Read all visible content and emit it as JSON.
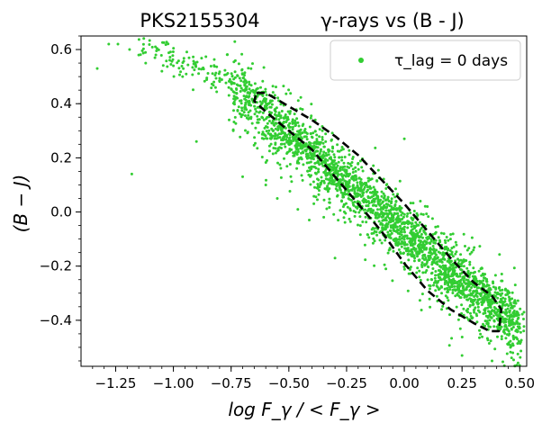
{
  "chart_data": {
    "type": "scatter",
    "title_left": "PKS2155304",
    "title_right": "γ-rays vs (B - J)",
    "xlabel": "log F_γ / < F_γ >",
    "ylabel": "(B − J)",
    "xlim": [
      -1.4,
      0.53
    ],
    "ylim": [
      -0.57,
      0.65
    ],
    "x_ticks": [
      -1.25,
      -1.0,
      -0.75,
      -0.5,
      -0.25,
      0.0,
      0.25,
      0.5
    ],
    "x_tick_labels": [
      "−1.25",
      "−1.00",
      "−0.75",
      "−0.50",
      "−0.25",
      "0.00",
      "0.25",
      "0.50"
    ],
    "y_ticks": [
      -0.4,
      -0.2,
      0.0,
      0.2,
      0.4,
      0.6
    ],
    "y_tick_labels": [
      "−0.4",
      "−0.2",
      "0.0",
      "0.2",
      "0.4",
      "0.6"
    ],
    "grid": false,
    "legend_position": "top-right",
    "series": [
      {
        "name": "τ_lag = 0  days",
        "color": "#32cd32",
        "marker": "circle",
        "trend": {
          "x_start": -0.75,
          "x_end": 0.5,
          "y_start": 0.47,
          "y_end": -0.43,
          "scatter_sd": 0.055,
          "n_points": 2600
        },
        "outliers": [
          {
            "x": -1.28,
            "y": 0.62
          },
          {
            "x": -1.24,
            "y": 0.62
          },
          {
            "x": -1.19,
            "y": 0.6
          },
          {
            "x": -1.33,
            "y": 0.53
          },
          {
            "x": -1.15,
            "y": 0.58
          },
          {
            "x": -1.12,
            "y": 0.55
          },
          {
            "x": -1.08,
            "y": 0.57
          },
          {
            "x": -1.05,
            "y": 0.52
          },
          {
            "x": -1.18,
            "y": 0.14
          },
          {
            "x": -0.9,
            "y": 0.26
          },
          {
            "x": -0.96,
            "y": 0.5
          },
          {
            "x": -1.0,
            "y": 0.54
          },
          {
            "x": 0.0,
            "y": 0.27
          },
          {
            "x": -0.25,
            "y": 0.15
          },
          {
            "x": -0.2,
            "y": 0.18
          },
          {
            "x": 0.25,
            "y": -0.53
          },
          {
            "x": 0.38,
            "y": -0.55
          },
          {
            "x": 0.47,
            "y": -0.52
          },
          {
            "x": -0.3,
            "y": -0.17
          },
          {
            "x": -0.7,
            "y": 0.13
          },
          {
            "x": -0.6,
            "y": 0.1
          },
          {
            "x": -0.55,
            "y": 0.05
          },
          {
            "x": 0.2,
            "y": -0.1
          },
          {
            "x": 0.1,
            "y": 0.02
          }
        ]
      }
    ],
    "contour": {
      "style": "dashed",
      "color": "#000000",
      "points": [
        [
          -0.64,
          0.44
        ],
        [
          -0.6,
          0.44
        ],
        [
          -0.5,
          0.39
        ],
        [
          -0.4,
          0.34
        ],
        [
          -0.3,
          0.28
        ],
        [
          -0.2,
          0.21
        ],
        [
          -0.1,
          0.12
        ],
        [
          0.0,
          0.03
        ],
        [
          0.1,
          -0.07
        ],
        [
          0.2,
          -0.17
        ],
        [
          0.3,
          -0.26
        ],
        [
          0.38,
          -0.31
        ],
        [
          0.42,
          -0.36
        ],
        [
          0.41,
          -0.44
        ],
        [
          0.37,
          -0.44
        ],
        [
          0.3,
          -0.41
        ],
        [
          0.2,
          -0.36
        ],
        [
          0.1,
          -0.29
        ],
        [
          0.0,
          -0.19
        ],
        [
          -0.1,
          -0.07
        ],
        [
          -0.2,
          0.03
        ],
        [
          -0.3,
          0.13
        ],
        [
          -0.4,
          0.23
        ],
        [
          -0.5,
          0.3
        ],
        [
          -0.6,
          0.37
        ],
        [
          -0.65,
          0.41
        ],
        [
          -0.64,
          0.44
        ]
      ]
    }
  }
}
